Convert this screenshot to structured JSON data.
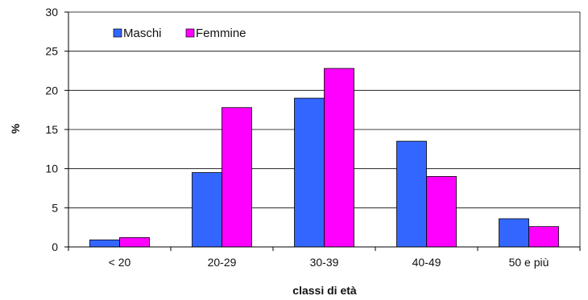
{
  "chart_data": {
    "type": "bar",
    "categories": [
      "< 20",
      "20-29",
      "30-39",
      "40-49",
      "50 e più"
    ],
    "series": [
      {
        "name": "Maschi",
        "color": "#3366ff",
        "values": [
          0.9,
          9.5,
          19.0,
          13.5,
          3.6
        ]
      },
      {
        "name": "Femmine",
        "color": "#ff00ff",
        "values": [
          1.2,
          17.8,
          22.8,
          9.0,
          2.6
        ]
      }
    ],
    "xlabel": "classi di età",
    "ylabel": "%",
    "ylim": [
      0,
      30
    ],
    "yticks": [
      "0",
      "5",
      "10",
      "15",
      "20",
      "25",
      "30"
    ],
    "grid": true,
    "legend": "top-left"
  }
}
